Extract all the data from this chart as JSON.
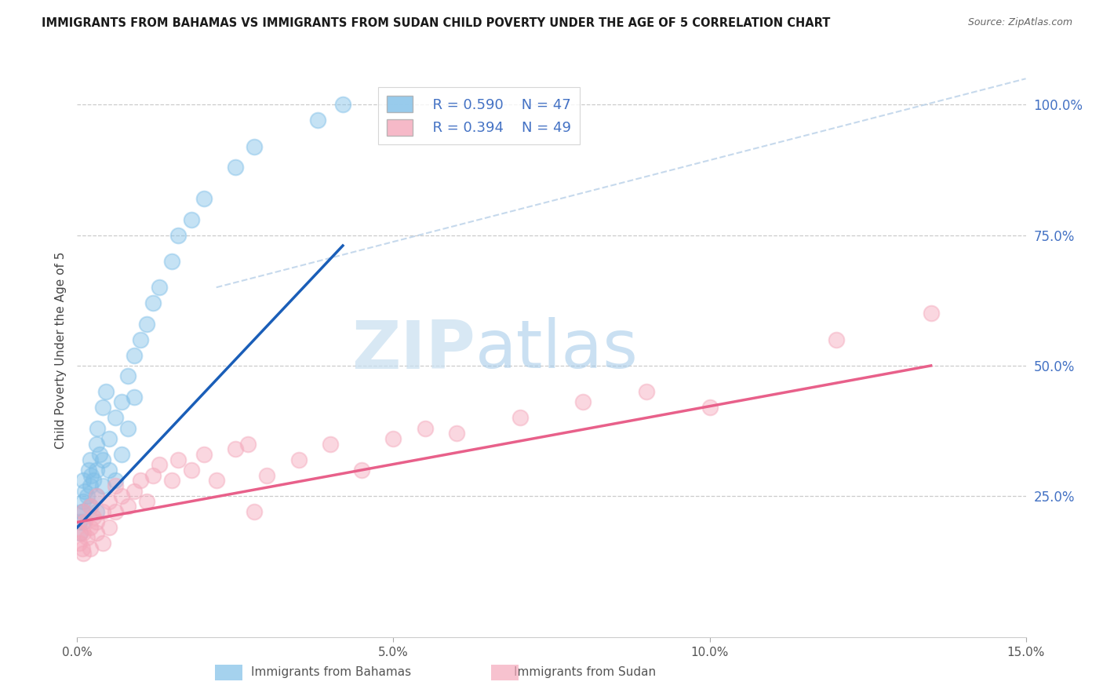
{
  "title": "IMMIGRANTS FROM BAHAMAS VS IMMIGRANTS FROM SUDAN CHILD POVERTY UNDER THE AGE OF 5 CORRELATION CHART",
  "source": "Source: ZipAtlas.com",
  "ylabel": "Child Poverty Under the Age of 5",
  "ytick_values": [
    0.0,
    0.25,
    0.5,
    0.75,
    1.0
  ],
  "ytick_labels_right": [
    "",
    "25.0%",
    "50.0%",
    "75.0%",
    "100.0%"
  ],
  "xlim": [
    0.0,
    0.15
  ],
  "ylim": [
    -0.02,
    1.08
  ],
  "legend_r1": "R = 0.590",
  "legend_n1": "N = 47",
  "legend_r2": "R = 0.394",
  "legend_n2": "N = 49",
  "color_bahamas": "#7fbfe8",
  "color_sudan": "#f4a8bb",
  "color_trendline_bahamas": "#1a5eb8",
  "color_trendline_sudan": "#e8608a",
  "color_diag": "#b8d0e8",
  "watermark_zip": "ZIP",
  "watermark_atlas": "atlas",
  "bahamas_x": [
    0.0003,
    0.0005,
    0.0008,
    0.001,
    0.001,
    0.001,
    0.001,
    0.0012,
    0.0015,
    0.0018,
    0.002,
    0.002,
    0.002,
    0.0022,
    0.0025,
    0.003,
    0.003,
    0.003,
    0.003,
    0.0032,
    0.0035,
    0.004,
    0.004,
    0.004,
    0.0045,
    0.005,
    0.005,
    0.006,
    0.006,
    0.007,
    0.007,
    0.008,
    0.008,
    0.009,
    0.009,
    0.01,
    0.011,
    0.012,
    0.013,
    0.015,
    0.016,
    0.018,
    0.02,
    0.025,
    0.028,
    0.038,
    0.042
  ],
  "bahamas_y": [
    0.2,
    0.18,
    0.22,
    0.2,
    0.24,
    0.28,
    0.22,
    0.26,
    0.25,
    0.3,
    0.23,
    0.27,
    0.32,
    0.29,
    0.28,
    0.25,
    0.3,
    0.35,
    0.22,
    0.38,
    0.33,
    0.27,
    0.42,
    0.32,
    0.45,
    0.3,
    0.36,
    0.28,
    0.4,
    0.43,
    0.33,
    0.48,
    0.38,
    0.52,
    0.44,
    0.55,
    0.58,
    0.62,
    0.65,
    0.7,
    0.75,
    0.78,
    0.82,
    0.88,
    0.92,
    0.97,
    1.0
  ],
  "sudan_x": [
    0.0003,
    0.0005,
    0.0008,
    0.001,
    0.001,
    0.001,
    0.0012,
    0.0015,
    0.002,
    0.002,
    0.002,
    0.0025,
    0.003,
    0.003,
    0.003,
    0.004,
    0.004,
    0.005,
    0.005,
    0.006,
    0.006,
    0.007,
    0.008,
    0.009,
    0.01,
    0.011,
    0.012,
    0.013,
    0.015,
    0.016,
    0.018,
    0.02,
    0.022,
    0.025,
    0.027,
    0.028,
    0.03,
    0.035,
    0.04,
    0.045,
    0.05,
    0.055,
    0.06,
    0.07,
    0.08,
    0.09,
    0.1,
    0.12,
    0.135
  ],
  "sudan_y": [
    0.16,
    0.18,
    0.15,
    0.22,
    0.18,
    0.14,
    0.2,
    0.17,
    0.19,
    0.23,
    0.15,
    0.21,
    0.18,
    0.25,
    0.2,
    0.16,
    0.22,
    0.24,
    0.19,
    0.27,
    0.22,
    0.25,
    0.23,
    0.26,
    0.28,
    0.24,
    0.29,
    0.31,
    0.28,
    0.32,
    0.3,
    0.33,
    0.28,
    0.34,
    0.35,
    0.22,
    0.29,
    0.32,
    0.35,
    0.3,
    0.36,
    0.38,
    0.37,
    0.4,
    0.43,
    0.45,
    0.42,
    0.55,
    0.6
  ],
  "bahamas_trendline": [
    [
      0.0,
      0.19
    ],
    [
      0.042,
      0.73
    ]
  ],
  "sudan_trendline": [
    [
      0.0,
      0.2
    ],
    [
      0.135,
      0.5
    ]
  ],
  "diag_line": [
    [
      0.022,
      0.65
    ],
    [
      0.15,
      1.05
    ]
  ]
}
